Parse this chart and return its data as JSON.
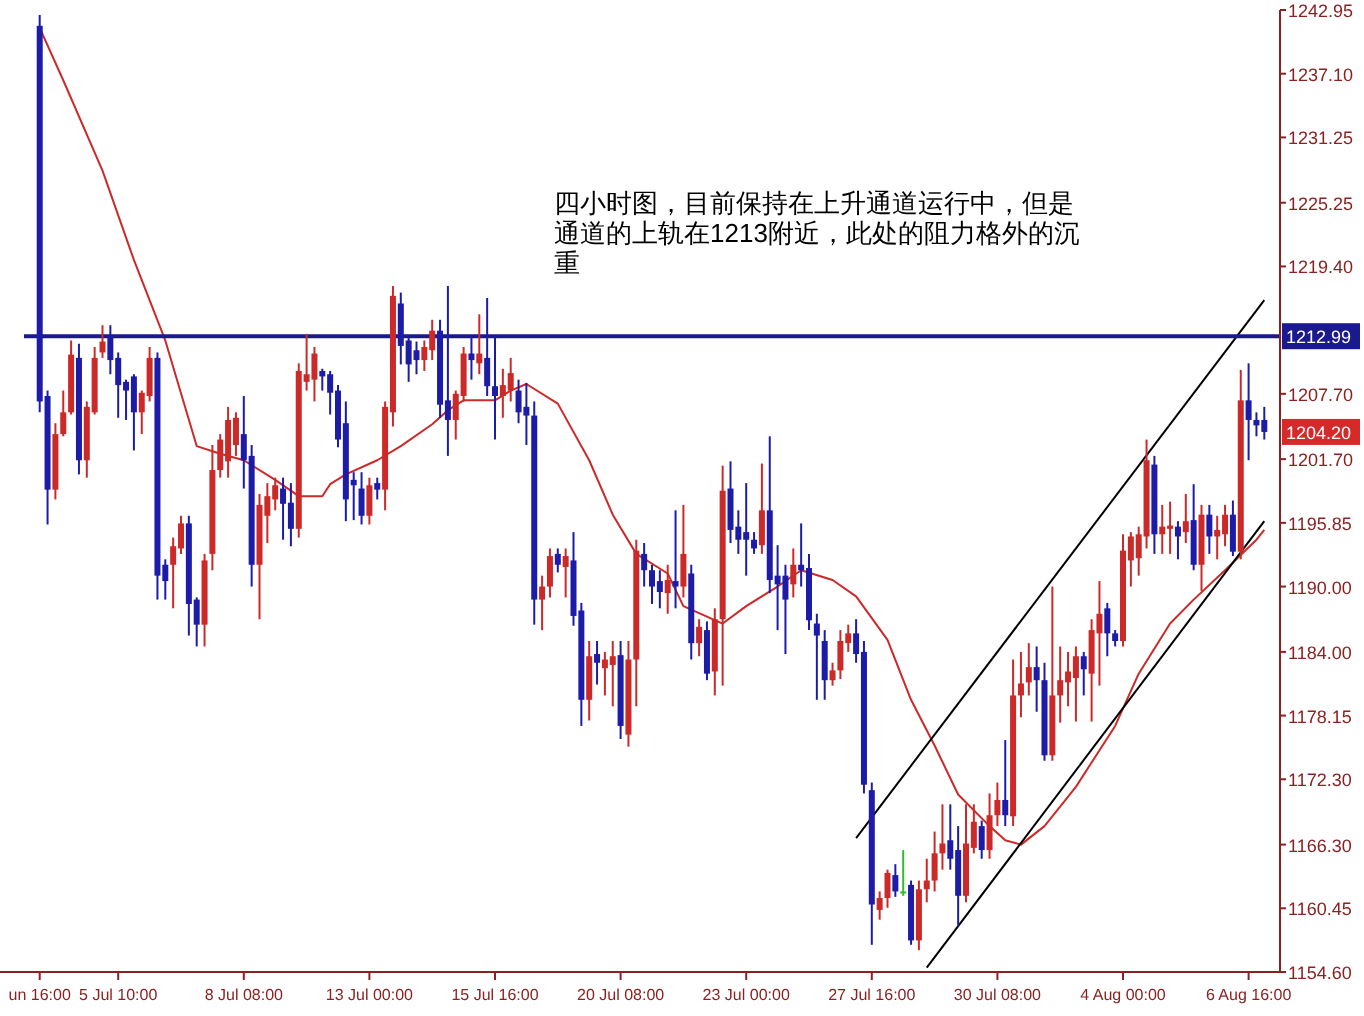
{
  "chart_data": {
    "type": "candlestick",
    "categories": [
      "un 16:00",
      null,
      null,
      null,
      null,
      null,
      null,
      null,
      null,
      null,
      "5 Jul 10:00",
      null,
      null,
      null,
      null,
      null,
      null,
      null,
      null,
      null,
      null,
      null,
      null,
      null,
      null,
      null,
      "8 Jul 08:00",
      null,
      null,
      null,
      null,
      null,
      null,
      null,
      null,
      null,
      null,
      null,
      null,
      null,
      null,
      null,
      "13 Jul 00:00",
      null,
      null,
      null,
      null,
      null,
      null,
      null,
      null,
      null,
      null,
      null,
      null,
      null,
      null,
      null,
      "15 Jul 16:00",
      null,
      null,
      null,
      null,
      null,
      null,
      null,
      null,
      null,
      null,
      null,
      null,
      null,
      null,
      null,
      "20 Jul 08:00",
      null,
      null,
      null,
      null,
      null,
      null,
      null,
      null,
      null,
      null,
      null,
      null,
      null,
      null,
      null,
      "23 Jul 00:00",
      null,
      null,
      null,
      null,
      null,
      null,
      null,
      null,
      null,
      null,
      null,
      null,
      null,
      null,
      null,
      "27 Jul 16:00",
      null,
      null,
      null,
      null,
      null,
      null,
      null,
      null,
      null,
      null,
      null,
      null,
      null,
      null,
      null,
      "30 Jul 08:00",
      null,
      null,
      null,
      null,
      null,
      null,
      null,
      null,
      null,
      null,
      null,
      null,
      null,
      null,
      null,
      "4 Aug 00:00",
      null,
      null,
      null,
      null,
      null,
      null,
      null,
      null,
      null,
      null,
      null,
      null,
      null,
      null,
      null,
      "6 Aug 16:00",
      null,
      null
    ],
    "ohlc": [
      [
        1241.5,
        1242.5,
        1206,
        1207
      ],
      [
        1207.5,
        1208,
        1195.7,
        1198.9
      ],
      [
        1198.9,
        1205,
        1198,
        1204
      ],
      [
        1204,
        1208,
        1203.8,
        1206
      ],
      [
        1206,
        1212.6,
        1205.8,
        1211.3
      ],
      [
        1211,
        1212.3,
        1200.3,
        1201.6
      ],
      [
        1201.6,
        1207,
        1200,
        1206.5
      ],
      [
        1206,
        1212,
        1205.8,
        1211
      ],
      [
        1211.5,
        1214,
        1211,
        1212.5
      ],
      [
        1213,
        1214,
        1209.5,
        1210.8
      ],
      [
        1211,
        1211.5,
        1205.5,
        1208.5
      ],
      [
        1208.8,
        1209,
        1205.3,
        1208
      ],
      [
        1209.3,
        1209.5,
        1202.5,
        1206
      ],
      [
        1206,
        1208,
        1204,
        1207.8
      ],
      [
        1207.5,
        1212,
        1207,
        1211
      ],
      [
        1211,
        1211.5,
        1188.8,
        1191
      ],
      [
        1192,
        1192.5,
        1188.8,
        1190.5
      ],
      [
        1192,
        1194.5,
        1188,
        1193.7
      ],
      [
        1193.5,
        1196.5,
        1193,
        1195.8
      ],
      [
        1195.8,
        1196.5,
        1185.5,
        1188.4
      ],
      [
        1188.8,
        1189,
        1184.5,
        1186.5
      ],
      [
        1186.5,
        1193,
        1184.5,
        1192.4
      ],
      [
        1193,
        1203,
        1191.5,
        1200.7
      ],
      [
        1200.7,
        1204,
        1200,
        1203.5
      ],
      [
        1201.5,
        1206.5,
        1200,
        1205.3
      ],
      [
        1203,
        1206,
        1202,
        1205.5
      ],
      [
        1204,
        1207.5,
        1199,
        1201.6
      ],
      [
        1202,
        1203,
        1190,
        1192
      ],
      [
        1192,
        1198.5,
        1187,
        1197.5
      ],
      [
        1196.5,
        1199.5,
        1194,
        1198.3
      ],
      [
        1198,
        1200,
        1197,
        1199.3
      ],
      [
        1199,
        1200,
        1194.3,
        1197.6
      ],
      [
        1197.7,
        1199.5,
        1193.7,
        1195.3
      ],
      [
        1195.3,
        1210.5,
        1194.5,
        1209.8
      ],
      [
        1208.8,
        1213.2,
        1208,
        1209.5
      ],
      [
        1209,
        1212,
        1207,
        1211.4
      ],
      [
        1209.8,
        1210,
        1208,
        1209.3
      ],
      [
        1209.5,
        1209.8,
        1205.8,
        1207.8
      ],
      [
        1208,
        1208.5,
        1202.8,
        1203.5
      ],
      [
        1205,
        1207,
        1196,
        1198
      ],
      [
        1199.8,
        1200.5,
        1196.1,
        1199.3
      ],
      [
        1199,
        1200.5,
        1195.7,
        1196.5
      ],
      [
        1196.5,
        1200,
        1195.7,
        1199.3
      ],
      [
        1199.5,
        1200,
        1198,
        1198.9
      ],
      [
        1198.9,
        1207,
        1197,
        1206.5
      ],
      [
        1206,
        1217.6,
        1204.7,
        1216.7
      ],
      [
        1216,
        1217,
        1210.4,
        1212.1
      ],
      [
        1212.6,
        1213,
        1208.8,
        1210.4
      ],
      [
        1211.7,
        1212.5,
        1209.5,
        1210.8
      ],
      [
        1210.8,
        1212.6,
        1209.8,
        1212
      ],
      [
        1211.7,
        1214.5,
        1210.8,
        1213.5
      ],
      [
        1213.5,
        1214.5,
        1205.5,
        1206.7
      ],
      [
        1207.1,
        1217.6,
        1202,
        1205.3
      ],
      [
        1205.3,
        1208,
        1203.5,
        1207.7
      ],
      [
        1207.5,
        1212,
        1207,
        1211.4
      ],
      [
        1211.4,
        1213,
        1209,
        1210.8
      ],
      [
        1210.5,
        1215,
        1209.5,
        1211.4
      ],
      [
        1211,
        1216.5,
        1207.5,
        1208.4
      ],
      [
        1208.4,
        1213,
        1203.5,
        1207.5
      ],
      [
        1207.5,
        1210,
        1205.5,
        1208.5
      ],
      [
        1208,
        1211,
        1207,
        1209.6
      ],
      [
        1208,
        1209,
        1205,
        1206
      ],
      [
        1206.5,
        1208.7,
        1203,
        1205.7
      ],
      [
        1205.7,
        1207,
        1186.5,
        1188.8
      ],
      [
        1188.8,
        1191,
        1186,
        1190
      ],
      [
        1190,
        1193.5,
        1189,
        1192.8
      ],
      [
        1193,
        1193.5,
        1191.3,
        1192
      ],
      [
        1191.8,
        1193.5,
        1189,
        1192.8
      ],
      [
        1192.4,
        1195,
        1186.4,
        1187.3
      ],
      [
        1187.8,
        1188.5,
        1177.2,
        1179.6
      ],
      [
        1179.6,
        1185,
        1177.7,
        1183.6
      ],
      [
        1183.8,
        1185,
        1181,
        1183
      ],
      [
        1182.5,
        1184,
        1180,
        1183.3
      ],
      [
        1182.8,
        1185,
        1179,
        1183.6
      ],
      [
        1183.7,
        1185,
        1176,
        1177.2
      ],
      [
        1176.4,
        1185,
        1175.3,
        1183.3
      ],
      [
        1183.3,
        1194.3,
        1179,
        1193.3
      ],
      [
        1193,
        1194,
        1190,
        1191.5
      ],
      [
        1191.5,
        1192,
        1188.4,
        1190
      ],
      [
        1190.5,
        1191.5,
        1188,
        1189.5
      ],
      [
        1189.4,
        1192,
        1187.5,
        1190.6
      ],
      [
        1190.5,
        1197,
        1188,
        1190
      ],
      [
        1190,
        1197.5,
        1189,
        1193
      ],
      [
        1191.2,
        1192,
        1183.3,
        1184.8
      ],
      [
        1184.8,
        1187,
        1183.6,
        1186.3
      ],
      [
        1186,
        1186.8,
        1181.4,
        1182
      ],
      [
        1182.2,
        1188,
        1180,
        1187
      ],
      [
        1187,
        1201.1,
        1180.9,
        1198.8
      ],
      [
        1199,
        1201.5,
        1194,
        1195.2
      ],
      [
        1195.5,
        1197,
        1193,
        1194.3
      ],
      [
        1195,
        1199.5,
        1191,
        1194.3
      ],
      [
        1194.3,
        1195,
        1193,
        1193.5
      ],
      [
        1193.8,
        1201.3,
        1193,
        1197
      ],
      [
        1197,
        1203.8,
        1189.4,
        1190.6
      ],
      [
        1191,
        1193.8,
        1186,
        1190.2
      ],
      [
        1191,
        1192,
        1183.8,
        1188.8
      ],
      [
        1190.2,
        1193.5,
        1189,
        1192
      ],
      [
        1192,
        1195.8,
        1190,
        1191.5
      ],
      [
        1191.7,
        1193,
        1186,
        1186.9
      ],
      [
        1186.6,
        1187.5,
        1179.6,
        1185.5
      ],
      [
        1185,
        1186,
        1179.6,
        1181.4
      ],
      [
        1181.4,
        1183,
        1180.9,
        1182.3
      ],
      [
        1182.3,
        1186,
        1181.5,
        1185
      ],
      [
        1184.8,
        1186.5,
        1184,
        1185.7
      ],
      [
        1185.7,
        1187,
        1183,
        1183.8
      ],
      [
        1184,
        1185,
        1171,
        1171.8
      ],
      [
        1171.3,
        1172,
        1157.1,
        1160.8
      ],
      [
        1160.3,
        1162,
        1159.4,
        1161.4
      ],
      [
        1161.4,
        1164,
        1160.5,
        1163.7
      ],
      [
        1163.5,
        1164.5,
        1161.5,
        1162
      ],
      [
        1162,
        1165.8,
        1161.6,
        1162
      ],
      [
        1162.6,
        1163,
        1157.1,
        1157.5
      ],
      [
        1157.5,
        1163,
        1156.6,
        1162.2
      ],
      [
        1162.2,
        1165,
        1161,
        1163
      ],
      [
        1163,
        1167.5,
        1162,
        1165.5
      ],
      [
        1165.5,
        1170,
        1164,
        1166.4
      ],
      [
        1166.7,
        1170,
        1164,
        1165
      ],
      [
        1165.8,
        1168,
        1158.8,
        1161.6
      ],
      [
        1161.6,
        1170,
        1161,
        1166.4
      ],
      [
        1166,
        1170,
        1165.5,
        1168.4
      ],
      [
        1168,
        1168.5,
        1165,
        1165.8
      ],
      [
        1165.8,
        1171,
        1165,
        1169
      ],
      [
        1169,
        1172,
        1168,
        1170.4
      ],
      [
        1170.4,
        1175.9,
        1168,
        1169
      ],
      [
        1168.9,
        1183.3,
        1168,
        1180
      ],
      [
        1180,
        1184,
        1178,
        1181.1
      ],
      [
        1181.2,
        1184.8,
        1180,
        1182.6
      ],
      [
        1182.6,
        1184.5,
        1178.5,
        1181.4
      ],
      [
        1181.4,
        1183,
        1174,
        1174.5
      ],
      [
        1174.5,
        1190,
        1174,
        1180
      ],
      [
        1180,
        1184.5,
        1177.5,
        1181.4
      ],
      [
        1181.2,
        1184,
        1179,
        1182.2
      ],
      [
        1181.6,
        1184.5,
        1177.6,
        1183.6
      ],
      [
        1183.6,
        1184,
        1180,
        1182.4
      ],
      [
        1182,
        1187,
        1177.6,
        1186
      ],
      [
        1185.7,
        1190.5,
        1180.9,
        1187.5
      ],
      [
        1188,
        1188.5,
        1183.6,
        1185.7
      ],
      [
        1185.7,
        1186,
        1184.5,
        1185
      ],
      [
        1185,
        1194.8,
        1184.5,
        1193.3
      ],
      [
        1192.4,
        1195,
        1190,
        1194.6
      ],
      [
        1192.6,
        1195.5,
        1191,
        1194.8
      ],
      [
        1194.6,
        1203.5,
        1193.5,
        1201.6
      ],
      [
        1201.2,
        1202,
        1193,
        1194.8
      ],
      [
        1194.8,
        1197.5,
        1193,
        1195.5
      ],
      [
        1195.3,
        1197.8,
        1193,
        1195.6
      ],
      [
        1195.5,
        1196,
        1192.5,
        1194.6
      ],
      [
        1195,
        1198.5,
        1194,
        1196
      ],
      [
        1196.1,
        1199.4,
        1191.5,
        1192
      ],
      [
        1192,
        1197.5,
        1189.6,
        1196.6
      ],
      [
        1196.6,
        1197.5,
        1193,
        1194.6
      ],
      [
        1194.6,
        1196.5,
        1192.5,
        1195.2
      ],
      [
        1194.8,
        1197.5,
        1193.7,
        1196.6
      ],
      [
        1196.6,
        1197.9,
        1192.8,
        1193.2
      ],
      [
        1193.2,
        1209.9,
        1192.5,
        1207.1
      ],
      [
        1207.1,
        1210.5,
        1201.6,
        1205.3
      ],
      [
        1205.3,
        1206,
        1203.8,
        1204.8
      ],
      [
        1205.3,
        1206.5,
        1203.5,
        1204.2
      ]
    ],
    "colors": [
      "#1c1ca8",
      "#1c1ca8",
      "#cc2929",
      "#cc2929",
      "#cc2929",
      "#1c1ca8",
      "#cc2929",
      "#cc2929",
      "#cc2929",
      "#1c1ca8",
      "#1c1ca8",
      "#1c1ca8",
      "#1c1ca8",
      "#cc2929",
      "#cc2929",
      "#1c1ca8",
      "#1c1ca8",
      "#cc2929",
      "#cc2929",
      "#1c1ca8",
      "#1c1ca8",
      "#cc2929",
      "#cc2929",
      "#cc2929",
      "#cc2929",
      "#cc2929",
      "#1c1ca8",
      "#1c1ca8",
      "#cc2929",
      "#cc2929",
      "#cc2929",
      "#1c1ca8",
      "#1c1ca8",
      "#cc2929",
      "#cc2929",
      "#cc2929",
      "#1c1ca8",
      "#1c1ca8",
      "#1c1ca8",
      "#1c1ca8",
      "#1c1ca8",
      "#1c1ca8",
      "#cc2929",
      "#1c1ca8",
      "#cc2929",
      "#cc2929",
      "#1c1ca8",
      "#1c1ca8",
      "#1c1ca8",
      "#cc2929",
      "#cc2929",
      "#1c1ca8",
      "#1c1ca8",
      "#cc2929",
      "#cc2929",
      "#1c1ca8",
      "#cc2929",
      "#1c1ca8",
      "#1c1ca8",
      "#cc2929",
      "#cc2929",
      "#1c1ca8",
      "#1c1ca8",
      "#1c1ca8",
      "#cc2929",
      "#cc2929",
      "#1c1ca8",
      "#cc2929",
      "#1c1ca8",
      "#1c1ca8",
      "#cc2929",
      "#1c1ca8",
      "#cc2929",
      "#cc2929",
      "#1c1ca8",
      "#cc2929",
      "#cc2929",
      "#1c1ca8",
      "#1c1ca8",
      "#1c1ca8",
      "#cc2929",
      "#1c1ca8",
      "#cc2929",
      "#1c1ca8",
      "#cc2929",
      "#1c1ca8",
      "#cc2929",
      "#cc2929",
      "#1c1ca8",
      "#1c1ca8",
      "#1c1ca8",
      "#1c1ca8",
      "#cc2929",
      "#1c1ca8",
      "#1c1ca8",
      "#1c1ca8",
      "#cc2929",
      "#1c1ca8",
      "#1c1ca8",
      "#1c1ca8",
      "#1c1ca8",
      "#cc2929",
      "#cc2929",
      "#cc2929",
      "#1c1ca8",
      "#1c1ca8",
      "#1c1ca8",
      "#cc2929",
      "#cc2929",
      "#1c1ca8",
      "#33bb33",
      "#1c1ca8",
      "#cc2929",
      "#cc2929",
      "#cc2929",
      "#cc2929",
      "#1c1ca8",
      "#1c1ca8",
      "#cc2929",
      "#cc2929",
      "#1c1ca8",
      "#cc2929",
      "#cc2929",
      "#1c1ca8",
      "#cc2929",
      "#cc2929",
      "#cc2929",
      "#1c1ca8",
      "#1c1ca8",
      "#cc2929",
      "#cc2929",
      "#cc2929",
      "#cc2929",
      "#1c1ca8",
      "#cc2929",
      "#cc2929",
      "#1c1ca8",
      "#1c1ca8",
      "#cc2929",
      "#cc2929",
      "#cc2929",
      "#cc2929",
      "#1c1ca8",
      "#cc2929",
      "#cc2929",
      "#1c1ca8",
      "#cc2929",
      "#1c1ca8",
      "#cc2929",
      "#1c1ca8",
      "#cc2929",
      "#cc2929",
      "#1c1ca8",
      "#cc2929",
      "#1c1ca8",
      "#1c1ca8",
      "#1c1ca8"
    ],
    "series": [
      {
        "type": "line",
        "color": "#cc2929",
        "values": [
          1241.3,
          null,
          null,
          1236.5,
          null,
          null,
          null,
          null,
          1228.2,
          null,
          null,
          null,
          1220.0,
          null,
          null,
          null,
          1212.6,
          null,
          null,
          null,
          1202.9,
          null,
          null,
          1202.2,
          null,
          null,
          1201.6,
          null,
          null,
          null,
          1199.8,
          null,
          null,
          1198.3,
          null,
          null,
          1198.3,
          1199.4,
          null,
          1200.3,
          null,
          null,
          null,
          1201.6,
          null,
          null,
          1202.9,
          null,
          null,
          null,
          1204.9,
          null,
          1206.2,
          null,
          1207.1,
          null,
          null,
          null,
          1207.1,
          null,
          1208.0,
          null,
          1208.6,
          null,
          null,
          null,
          1206.8,
          null,
          null,
          null,
          1201.6,
          null,
          null,
          1196.6,
          null,
          null,
          1193.0,
          null,
          null,
          null,
          1191.2,
          null,
          1188.2,
          null,
          null,
          null,
          null,
          1186.6,
          null,
          null,
          1188.2,
          null,
          null,
          null,
          1190.0,
          null,
          null,
          1191.5,
          null,
          null,
          null,
          1190.6,
          null,
          null,
          1189.1,
          null,
          null,
          null,
          1185.1,
          null,
          null,
          1179.6,
          null,
          null,
          1175.4,
          null,
          null,
          1170.9,
          null,
          null,
          null,
          1168.0,
          null,
          1166.7,
          null,
          1166.3,
          null,
          null,
          1168.0,
          null,
          null,
          null,
          1171.6,
          null,
          null,
          null,
          null,
          1177.2,
          null,
          null,
          1182.0,
          null,
          null,
          null,
          1186.6,
          null,
          null,
          1188.8,
          null,
          null,
          null,
          1191.5,
          null,
          null,
          null,
          1194.3,
          1195.2
        ]
      },
      {
        "type": "line",
        "color": "#000000",
        "values": [
          null,
          null,
          null,
          null,
          null,
          null,
          null,
          null,
          null,
          null,
          null,
          null,
          null,
          null,
          null,
          null,
          null,
          null,
          null,
          null,
          null,
          null,
          null,
          null,
          null,
          null,
          null,
          null,
          null,
          null,
          null,
          null,
          null,
          null,
          null,
          null,
          null,
          null,
          null,
          null,
          null,
          null,
          null,
          null,
          null,
          null,
          null,
          null,
          null,
          null,
          null,
          null,
          null,
          null,
          null,
          null,
          null,
          null,
          null,
          null,
          null,
          null,
          null,
          null,
          null,
          null,
          null,
          null,
          null,
          null,
          null,
          null,
          null,
          null,
          null,
          null,
          null,
          null,
          null,
          null,
          null,
          null,
          null,
          null,
          null,
          null,
          null,
          null,
          null,
          null,
          null,
          null,
          null,
          null,
          null,
          null,
          null,
          null,
          null,
          null,
          null,
          null,
          null,
          null,
          1166.9,
          null,
          null,
          null,
          null,
          null,
          null,
          null,
          null,
          null,
          null,
          null,
          null,
          null,
          null,
          null,
          null,
          null,
          null,
          null,
          null,
          null,
          null,
          null,
          null,
          null,
          null,
          null,
          null,
          null,
          null,
          null,
          null,
          null,
          null,
          null,
          null,
          null,
          null,
          null,
          null,
          null,
          null,
          null,
          null,
          null,
          null,
          null,
          null,
          null,
          null,
          null,
          1216.3
        ]
      },
      {
        "type": "line",
        "color": "#000000",
        "values": [
          null,
          null,
          null,
          null,
          null,
          null,
          null,
          null,
          null,
          null,
          null,
          null,
          null,
          null,
          null,
          null,
          null,
          null,
          null,
          null,
          null,
          null,
          null,
          null,
          null,
          null,
          null,
          null,
          null,
          null,
          null,
          null,
          null,
          null,
          null,
          null,
          null,
          null,
          null,
          null,
          null,
          null,
          null,
          null,
          null,
          null,
          null,
          null,
          null,
          null,
          null,
          null,
          null,
          null,
          null,
          null,
          null,
          null,
          null,
          null,
          null,
          null,
          null,
          null,
          null,
          null,
          null,
          null,
          null,
          null,
          null,
          null,
          null,
          null,
          null,
          null,
          null,
          null,
          null,
          null,
          null,
          null,
          null,
          null,
          null,
          null,
          null,
          null,
          null,
          null,
          null,
          null,
          null,
          null,
          null,
          null,
          null,
          null,
          null,
          null,
          null,
          null,
          null,
          null,
          null,
          null,
          null,
          null,
          null,
          null,
          null,
          null,
          null,
          1155.0,
          null,
          null,
          null,
          null,
          null,
          null,
          null,
          null,
          null,
          null,
          null,
          null,
          null,
          null,
          null,
          null,
          null,
          null,
          null,
          null,
          null,
          null,
          null,
          null,
          null,
          null,
          null,
          null,
          null,
          null,
          null,
          null,
          null,
          null,
          null,
          null,
          null,
          null,
          null,
          null,
          null,
          null,
          1196.0
        ]
      }
    ],
    "ylim": [
      1154.6,
      1242.95
    ],
    "yticks": [
      1242.95,
      {
        "value": 1237.1,
        "label": "1237.10"
      },
      1231.25,
      1225.25,
      {
        "value": 1219.4,
        "label": "1219.40"
      },
      {
        "value": 1207.7,
        "label": "1207.70"
      },
      {
        "value": 1201.7,
        "label": "1201.70"
      },
      1195.85,
      {
        "value": 1190,
        "label": "1190.00"
      },
      {
        "value": 1184,
        "label": "1184.00"
      },
      1178.15,
      {
        "value": 1172.3,
        "label": "1172.30"
      },
      {
        "value": 1166.3,
        "label": "1166.30"
      },
      1160.45,
      {
        "value": 1154.6,
        "label": "1154.60"
      }
    ],
    "ref_lines": [
      {
        "axis": "y",
        "value": 1212.99,
        "label": "1212.99",
        "color": "#1a1a8c"
      }
    ],
    "annotations": [
      {
        "text": "1204.20",
        "y": 1204.2
      },
      "四小时图，目前保持在上升通道运行中，但是通道的上轨在1213附近，此处的阻力格外的沉重"
    ]
  }
}
